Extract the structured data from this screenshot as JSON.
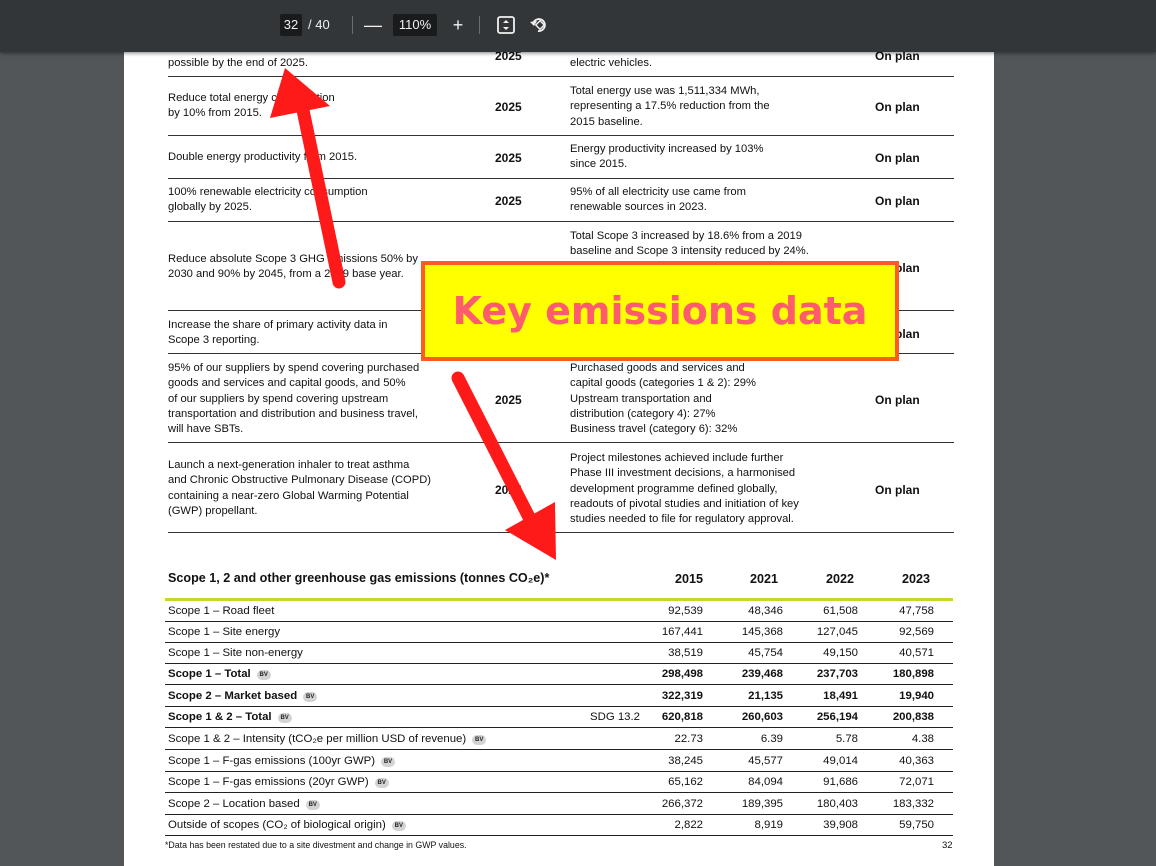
{
  "toolbar": {
    "page_current": "32",
    "page_total": "/ 40",
    "zoom": "110%",
    "zoom_out_glyph": "—",
    "zoom_in_glyph": "+",
    "icons": [
      "fit-page-icon",
      "rotate-icon"
    ]
  },
  "targets": [
    {
      "goal": [
        "possible by the end of 2025."
      ],
      "year": "2025",
      "progress": [
        "electric vehicles."
      ],
      "status": "On plan"
    },
    {
      "goal": [
        "Reduce total energy consumption",
        "by 10% from 2015."
      ],
      "year": "2025",
      "progress": [
        "Total energy use was 1,511,334 MWh,",
        "representing a 17.5% reduction from the",
        "2015 baseline."
      ],
      "status": "On plan"
    },
    {
      "goal": [
        "Double energy productivity from 2015."
      ],
      "year": "2025",
      "progress": [
        "Energy productivity increased by 103%",
        "since 2015."
      ],
      "status": "On plan"
    },
    {
      "goal": [
        "100% renewable electricity consumption",
        "globally by 2025."
      ],
      "year": "2025",
      "progress": [
        "95% of all electricity use came from",
        "renewable sources in 2023."
      ],
      "status": "On plan"
    },
    {
      "goal": [
        "Reduce absolute Scope 3 GHG emissions 50% by",
        "2030 and 90% by 2045, from a 2019 base year."
      ],
      "year": "",
      "progress": [
        "Total Scope 3 increased by 18.6% from a 2019",
        "baseline and Scope 3 intensity reduced by 24%."
      ],
      "status": "On plan"
    },
    {
      "goal": [
        "Increase the share of primary activity data in",
        "Scope 3 reporting."
      ],
      "year": "",
      "progress": [],
      "status": "On plan"
    },
    {
      "goal": [
        "95% of our suppliers by spend covering purchased",
        "goods and services and capital goods, and 50%",
        "of our suppliers by spend covering upstream",
        "transportation and distribution and business travel,",
        "will have SBTs."
      ],
      "year": "2025",
      "progress": [
        "Purchased goods and services and",
        "capital goods (categories 1 & 2): 29%",
        "Upstream transportation and",
        "distribution (category 4): 27%",
        "Business travel (category 6): 32%"
      ],
      "status": "On plan"
    },
    {
      "goal": [
        "Launch a next-generation inhaler to treat asthma",
        "and Chronic Obstructive Pulmonary Disease (COPD)",
        "containing a near-zero Global Warming Potential",
        "(GWP) propellant."
      ],
      "year": "2025",
      "progress": [
        "Project milestones achieved include further",
        "Phase III investment decisions, a harmonised",
        "development programme defined globally,",
        "readouts of pivotal studies and initiation of key",
        "studies needed to file for regulatory approval."
      ],
      "status": "On plan"
    }
  ],
  "emissions": {
    "title": "Scope 1, 2 and other greenhouse gas emissions (tonnes CO₂e)*",
    "years": [
      "2015",
      "2021",
      "2022",
      "2023"
    ],
    "badge": "BV",
    "sdg": "SDG 13.2",
    "rows": [
      {
        "label": "Scope 1 – Road fleet",
        "values": [
          "92,539",
          "48,346",
          "61,508",
          "47,758"
        ]
      },
      {
        "label": "Scope 1 – Site energy",
        "values": [
          "167,441",
          "145,368",
          "127,045",
          "92,569"
        ]
      },
      {
        "label": "Scope 1 – Site non-energy",
        "values": [
          "38,519",
          "45,754",
          "49,150",
          "40,571"
        ]
      },
      {
        "label": "Scope 1 – Total",
        "values": [
          "298,498",
          "239,468",
          "237,703",
          "180,898"
        ]
      },
      {
        "label": "Scope 2 – Market based",
        "values": [
          "322,319",
          "21,135",
          "18,491",
          "19,940"
        ]
      },
      {
        "label": "Scope 1 & 2 – Total",
        "values": [
          "620,818",
          "260,603",
          "256,194",
          "200,838"
        ]
      },
      {
        "label": "Scope 1 & 2 – Intensity (tCO₂e per million USD of revenue)",
        "values": [
          "22.73",
          "6.39",
          "5.78",
          "4.38"
        ]
      },
      {
        "label": "Scope 1 – F-gas emissions (100yr GWP)",
        "values": [
          "38,245",
          "45,577",
          "49,014",
          "40,363"
        ]
      },
      {
        "label": "Scope 1 – F-gas emissions (20yr GWP)",
        "values": [
          "65,162",
          "84,094",
          "91,686",
          "72,071"
        ]
      },
      {
        "label": "Scope 2 – Location based",
        "values": [
          "266,372",
          "189,395",
          "180,403",
          "183,332"
        ]
      },
      {
        "label": "Outside of scopes (CO₂ of biological origin)",
        "values": [
          "2,822",
          "8,919",
          "39,908",
          "59,750"
        ]
      }
    ],
    "footnote": "*Data has been restated due to a site divestment and change in GWP values.",
    "page_number": "32"
  },
  "callout": {
    "text": "Key emissions data",
    "fill": "#ffff00",
    "border": "#ff5a1f",
    "text_color": "#ff5b6e"
  },
  "annotation_arrow_color": "#ff1a1a"
}
